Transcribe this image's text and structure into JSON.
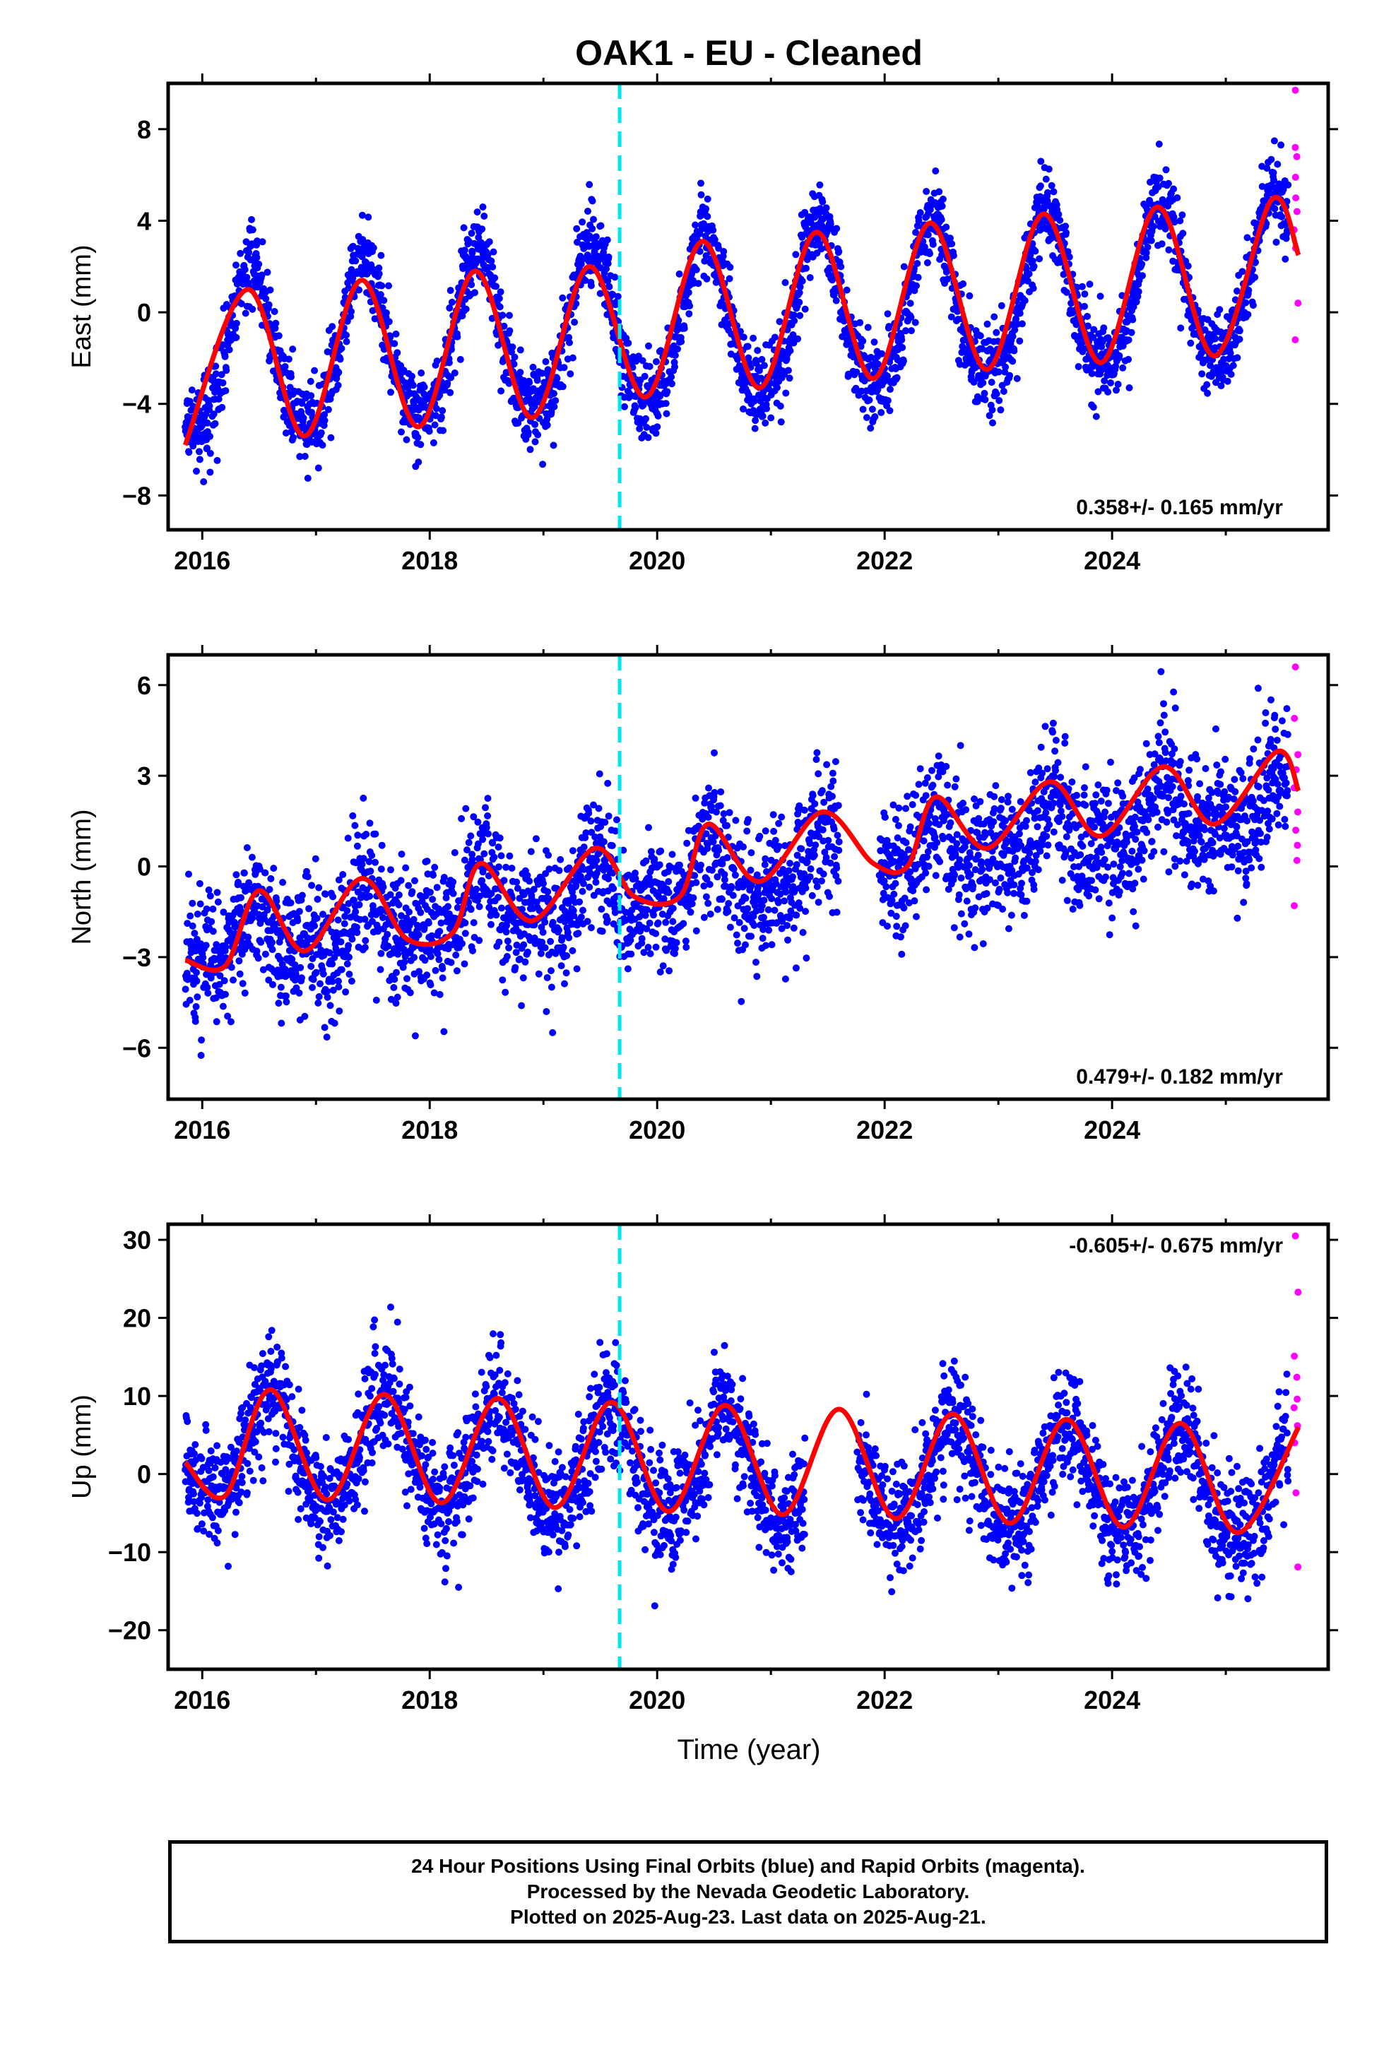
{
  "figure": {
    "title": "OAK1  - EU - Cleaned",
    "x_axis_label": "Time (year)"
  },
  "footer": {
    "lines": [
      "24 Hour Positions Using Final Orbits (blue) and Rapid Orbits (magenta).",
      "Processed by the Nevada Geodetic Laboratory.",
      "Plotted on 2025-Aug-23. Last data on 2025-Aug-21."
    ]
  },
  "colors": {
    "final_orbits": "#0000ff",
    "rapid_orbits": "#ff00ff",
    "model_fit": "#ff0000",
    "equipment_change": "#00e5ee"
  },
  "chart_data": [
    {
      "type": "scatter",
      "component": "east",
      "ylabel": "East (mm)",
      "xlim": [
        2015.7,
        2025.9
      ],
      "ylim": [
        -9.5,
        10
      ],
      "xticks": [
        2016,
        2018,
        2020,
        2022,
        2024
      ],
      "yticks": [
        -8,
        -4,
        0,
        4,
        8
      ],
      "velocity_text": "0.358+/- 0.165 mm/yr",
      "velocity_mm_yr": 0.358,
      "velocity_sigma": 0.165,
      "equipment_change_year": 2019.67,
      "data_start": 2015.85,
      "rapid_start": 2025.55,
      "data_end": 2025.64,
      "model": {
        "offset_at_2016": -2.1,
        "annual_amplitude": 3.5,
        "peak_phase_year": 0.42,
        "semiannual_amplitude": 0.5
      },
      "scatter_sigma": 0.9,
      "model_fit": {
        "x": [
          2015.85,
          2016.4,
          2016.9,
          2017.4,
          2017.9,
          2018.4,
          2018.9,
          2019.4,
          2019.9,
          2020.4,
          2020.9,
          2021.4,
          2021.9,
          2022.4,
          2022.9,
          2023.4,
          2023.9,
          2024.4,
          2024.9,
          2025.4,
          2025.64
        ],
        "y": [
          -5.8,
          1.0,
          -5.4,
          1.4,
          -5.0,
          1.8,
          -4.6,
          2.0,
          -3.7,
          3.1,
          -3.3,
          3.5,
          -2.9,
          3.9,
          -2.5,
          4.3,
          -2.2,
          4.6,
          -1.9,
          4.9,
          2.5
        ]
      },
      "rapid_points": [
        9.7,
        7.2,
        6.8,
        5.9,
        5.0,
        4.4,
        3.6,
        2.8,
        0.4,
        -1.2
      ]
    },
    {
      "type": "scatter",
      "component": "north",
      "ylabel": "North (mm)",
      "xlim": [
        2015.7,
        2025.9
      ],
      "ylim": [
        -7.7,
        7
      ],
      "xticks": [
        2016,
        2018,
        2020,
        2022,
        2024
      ],
      "yticks": [
        -6,
        -3,
        0,
        3,
        6
      ],
      "velocity_text": "0.479+/- 0.182 mm/yr",
      "velocity_mm_yr": 0.479,
      "velocity_sigma": 0.182,
      "equipment_change_year": 2019.67,
      "data_start": 2015.85,
      "rapid_start": 2025.55,
      "data_end": 2025.64,
      "model": {
        "offset_at_2016": -2.6,
        "annual_amplitude": 0.8,
        "peak_phase_year": 0.45,
        "semiannual_amplitude": 0.5
      },
      "scatter_sigma": 1.1,
      "model_fit": {
        "x": [
          2015.85,
          2016.2,
          2016.5,
          2016.9,
          2017.4,
          2017.8,
          2018.2,
          2018.45,
          2018.9,
          2019.45,
          2019.8,
          2020.2,
          2020.45,
          2020.9,
          2021.45,
          2021.9,
          2022.2,
          2022.45,
          2022.9,
          2023.45,
          2023.9,
          2024.45,
          2024.9,
          2025.45,
          2025.64
        ],
        "y": [
          -3.1,
          -3.3,
          -0.8,
          -2.8,
          -0.4,
          -2.4,
          -2.2,
          0.1,
          -1.8,
          0.6,
          -1.0,
          -1.0,
          1.4,
          -0.5,
          1.8,
          0.1,
          0.0,
          2.3,
          0.6,
          2.8,
          1.0,
          3.3,
          1.4,
          3.8,
          2.5
        ]
      },
      "rapid_points": [
        6.6,
        4.9,
        3.7,
        3.2,
        2.6,
        1.8,
        1.2,
        0.7,
        0.2,
        -1.3
      ]
    },
    {
      "type": "scatter",
      "component": "up",
      "ylabel": "Up (mm)",
      "xlim": [
        2015.7,
        2025.9
      ],
      "ylim": [
        -25,
        32
      ],
      "xticks": [
        2016,
        2018,
        2020,
        2022,
        2024
      ],
      "yticks": [
        -20,
        -10,
        0,
        10,
        20,
        30
      ],
      "velocity_text": "-0.605+/- 0.675 mm/yr",
      "velocity_mm_yr": -0.605,
      "velocity_sigma": 0.675,
      "equipment_change_year": 2019.67,
      "data_start": 2015.85,
      "rapid_start": 2025.55,
      "data_end": 2025.64,
      "model": {
        "offset_at_2016": 3.5,
        "annual_amplitude": 7.0,
        "peak_phase_year": 0.6,
        "semiannual_amplitude": 0.8
      },
      "scatter_sigma": 3.6,
      "model_fit": {
        "x": [
          2015.85,
          2016.2,
          2016.6,
          2017.1,
          2017.6,
          2018.1,
          2018.6,
          2019.1,
          2019.6,
          2020.1,
          2020.6,
          2021.1,
          2021.6,
          2022.1,
          2022.6,
          2023.1,
          2023.6,
          2024.1,
          2024.6,
          2025.1,
          2025.64
        ],
        "y": [
          1.5,
          -2.8,
          10.8,
          -3.3,
          10.2,
          -3.7,
          9.7,
          -4.3,
          9.2,
          -4.8,
          8.8,
          -5.2,
          8.3,
          -5.7,
          7.7,
          -6.3,
          7.0,
          -6.8,
          6.5,
          -7.5,
          6.0
        ]
      },
      "rapid_points": [
        30.5,
        23.3,
        15.1,
        12.4,
        9.6,
        8.5,
        6.2,
        4.0,
        -2.4,
        -11.9
      ]
    }
  ]
}
